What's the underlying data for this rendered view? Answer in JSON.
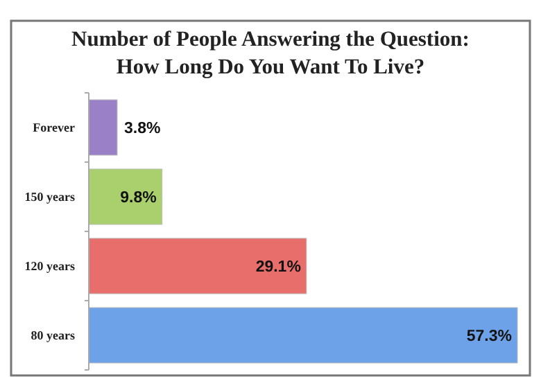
{
  "chart_data": {
    "type": "bar",
    "orientation": "horizontal",
    "title": "Number of People Answering the Question:\nHow Long Do You Want To Live?",
    "categories": [
      "Forever",
      "150 years",
      "120 years",
      "80 years"
    ],
    "values": [
      3.8,
      9.8,
      29.1,
      57.3
    ],
    "colors": [
      "#9a80c6",
      "#a9d06c",
      "#e86e6c",
      "#6ea2e8"
    ],
    "value_labels": [
      "3.8%",
      "9.8%",
      "29.1%",
      "57.3%"
    ],
    "grid": false
  }
}
